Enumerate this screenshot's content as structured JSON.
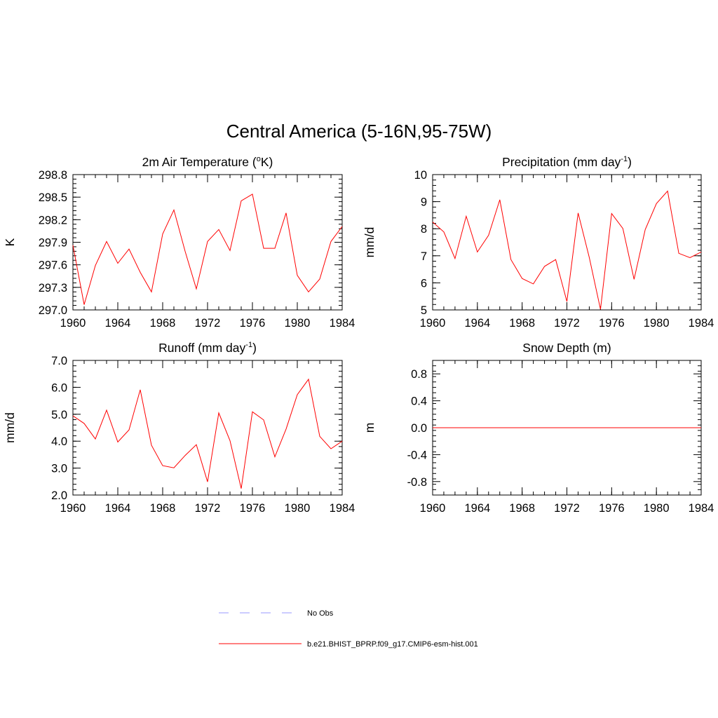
{
  "figure_title": "Central America (5-16N,95-75W)",
  "colors": {
    "model": "#ff0000",
    "obs": "#9999ff",
    "axes": "#000000"
  },
  "legend": {
    "items": [
      {
        "label": "No Obs",
        "style": "dashed",
        "color": "#9999ff"
      },
      {
        "label": "b.e21.BHIST_BPRP.f09_g17.CMIP6-esm-hist.001",
        "style": "solid",
        "color": "#ff0000"
      }
    ]
  },
  "chart_data": [
    {
      "type": "line",
      "title": "2m Air Temperature (",
      "title_sup": "o",
      "title_rest": "K)",
      "ylabel": "K",
      "xlim": [
        1960,
        1984
      ],
      "ylim": [
        297.0,
        298.8
      ],
      "xticks": [
        "1960",
        "1964",
        "1968",
        "1972",
        "1976",
        "1980",
        "1984"
      ],
      "yticks": [
        "297.0",
        "297.3",
        "297.6",
        "297.9",
        "298.2",
        "298.5",
        "298.8"
      ],
      "ytick_values": [
        297.0,
        297.3,
        297.6,
        297.9,
        298.2,
        298.5,
        298.8
      ],
      "x": [
        1960,
        1961,
        1962,
        1963,
        1964,
        1965,
        1966,
        1967,
        1968,
        1969,
        1970,
        1971,
        1972,
        1973,
        1974,
        1975,
        1976,
        1977,
        1978,
        1979,
        1980,
        1981,
        1982,
        1983,
        1984
      ],
      "series": [
        {
          "values": [
            297.86,
            297.07,
            297.59,
            297.91,
            297.62,
            297.81,
            297.5,
            297.24,
            298.01,
            298.33,
            297.78,
            297.28,
            297.91,
            298.07,
            297.79,
            298.45,
            298.54,
            297.82,
            297.82,
            298.29,
            297.46,
            297.24,
            297.41,
            297.91,
            298.11
          ]
        }
      ]
    },
    {
      "type": "line",
      "title": "Precipitation (mm day",
      "title_sup": "-1",
      "title_rest": ")",
      "ylabel": "mm/d",
      "xlim": [
        1960,
        1984
      ],
      "ylim": [
        5,
        10
      ],
      "xticks": [
        "1960",
        "1964",
        "1968",
        "1972",
        "1976",
        "1980",
        "1984"
      ],
      "yticks": [
        "5",
        "6",
        "7",
        "8",
        "9",
        "10"
      ],
      "ytick_values": [
        5,
        6,
        7,
        8,
        9,
        10
      ],
      "x": [
        1960,
        1961,
        1962,
        1963,
        1964,
        1965,
        1966,
        1967,
        1968,
        1969,
        1970,
        1971,
        1972,
        1973,
        1974,
        1975,
        1976,
        1977,
        1978,
        1979,
        1980,
        1981,
        1982,
        1983,
        1984
      ],
      "series": [
        {
          "values": [
            8.25,
            7.88,
            6.9,
            8.46,
            7.14,
            7.76,
            9.07,
            6.86,
            6.16,
            5.96,
            6.61,
            6.86,
            5.31,
            8.58,
            6.94,
            5.02,
            8.56,
            8.01,
            6.13,
            7.97,
            8.93,
            9.39,
            7.09,
            6.93,
            7.14
          ]
        }
      ]
    },
    {
      "type": "line",
      "title": "Runoff (mm day",
      "title_sup": "-1",
      "title_rest": ")",
      "ylabel": "mm/d",
      "xlim": [
        1960,
        1984
      ],
      "ylim": [
        2.0,
        7.0
      ],
      "xticks": [
        "1960",
        "1964",
        "1968",
        "1972",
        "1976",
        "1980",
        "1984"
      ],
      "yticks": [
        "2.0",
        "3.0",
        "4.0",
        "5.0",
        "6.0",
        "7.0"
      ],
      "ytick_values": [
        2,
        3,
        4,
        5,
        6,
        7
      ],
      "x": [
        1960,
        1961,
        1962,
        1963,
        1964,
        1965,
        1966,
        1967,
        1968,
        1969,
        1970,
        1971,
        1972,
        1973,
        1974,
        1975,
        1976,
        1977,
        1978,
        1979,
        1980,
        1981,
        1982,
        1983,
        1984
      ],
      "series": [
        {
          "values": [
            4.94,
            4.66,
            4.08,
            5.15,
            3.97,
            4.42,
            5.91,
            3.85,
            3.09,
            3.01,
            3.47,
            3.87,
            2.49,
            5.05,
            4.02,
            2.24,
            5.09,
            4.79,
            3.42,
            4.45,
            5.73,
            6.3,
            4.18,
            3.72,
            4.0
          ]
        }
      ]
    },
    {
      "type": "line",
      "title": "Snow Depth (m)",
      "title_sup": "",
      "title_rest": "",
      "ylabel": "m",
      "xlim": [
        1960,
        1984
      ],
      "ylim": [
        -1.0,
        1.0
      ],
      "xticks": [
        "1960",
        "1964",
        "1968",
        "1972",
        "1976",
        "1980",
        "1984"
      ],
      "yticks": [
        "-0.8",
        "-0.4",
        "0.0",
        "0.4",
        "0.8"
      ],
      "ytick_values": [
        -0.8,
        -0.4,
        0.0,
        0.4,
        0.8
      ],
      "x": [
        1960,
        1961,
        1962,
        1963,
        1964,
        1965,
        1966,
        1967,
        1968,
        1969,
        1970,
        1971,
        1972,
        1973,
        1974,
        1975,
        1976,
        1977,
        1978,
        1979,
        1980,
        1981,
        1982,
        1983,
        1984
      ],
      "series": [
        {
          "values": [
            0,
            0,
            0,
            0,
            0,
            0,
            0,
            0,
            0,
            0,
            0,
            0,
            0,
            0,
            0,
            0,
            0,
            0,
            0,
            0,
            0,
            0,
            0,
            0,
            0
          ]
        }
      ]
    }
  ]
}
